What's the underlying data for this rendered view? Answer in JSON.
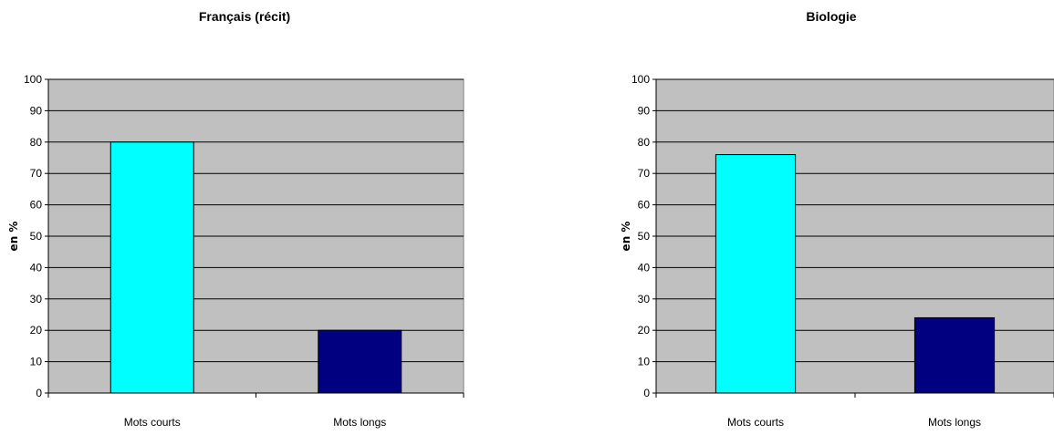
{
  "chart_data": [
    {
      "type": "bar",
      "title": "Français (récit)",
      "ylabel": "en %",
      "xlabel": "",
      "categories": [
        "Mots courts",
        "Mots longs"
      ],
      "values": [
        80,
        20
      ],
      "ylim": [
        0,
        100
      ],
      "yticks": [
        "0",
        "10",
        "20",
        "30",
        "40",
        "50",
        "60",
        "70",
        "80",
        "90",
        "100"
      ],
      "colors": [
        "#00ffff",
        "#000080"
      ],
      "plot_background": "#c0c0c0",
      "grid": true,
      "legend": "none"
    },
    {
      "type": "bar",
      "title": "Biologie",
      "ylabel": "en %",
      "xlabel": "",
      "categories": [
        "Mots courts",
        "Mots longs"
      ],
      "values": [
        76,
        24
      ],
      "ylim": [
        0,
        100
      ],
      "yticks": [
        "0",
        "10",
        "20",
        "30",
        "40",
        "50",
        "60",
        "70",
        "80",
        "90",
        "100"
      ],
      "colors": [
        "#00ffff",
        "#000080"
      ],
      "plot_background": "#c0c0c0",
      "grid": true,
      "legend": "none"
    }
  ]
}
